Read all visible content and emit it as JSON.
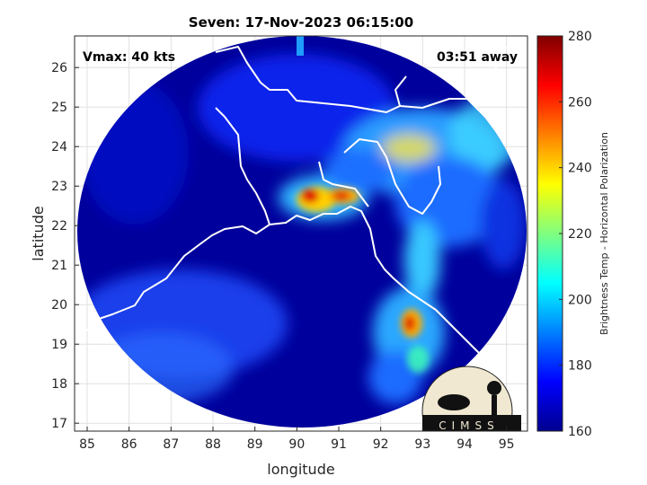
{
  "chart_data": {
    "type": "image",
    "title": "Seven: 17-Nov-2023 06:15:00",
    "x_label": "longitude",
    "y_label": "latitude",
    "annotations": [
      "Vmax: 40 kts",
      "03:51 away"
    ],
    "xlim": [
      84.7,
      95.5
    ],
    "ylim": [
      16.8,
      26.8
    ],
    "xticks": [
      85,
      86,
      87,
      88,
      89,
      90,
      91,
      92,
      93,
      94,
      95
    ],
    "yticks": [
      17,
      18,
      19,
      20,
      21,
      22,
      23,
      24,
      25,
      26
    ],
    "grid": true,
    "colorbar": {
      "label": "Brightness Temp - Horizontal Polarization",
      "lim": [
        160,
        280
      ],
      "ticks": [
        160,
        180,
        200,
        220,
        240,
        260,
        280
      ],
      "colormap": "jet"
    },
    "logo": "CIMSS"
  }
}
